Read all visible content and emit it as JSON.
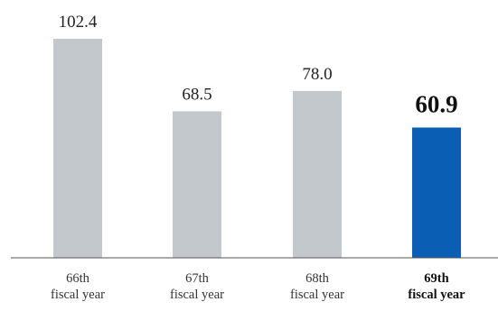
{
  "chart_data": {
    "type": "bar",
    "title": "",
    "xlabel": "",
    "ylabel": "",
    "categories": [
      [
        "66th",
        "fiscal year"
      ],
      [
        "67th",
        "fiscal year"
      ],
      [
        "68th",
        "fiscal year"
      ],
      [
        "69th",
        "fiscal year"
      ]
    ],
    "values": [
      102.4,
      68.5,
      78.0,
      60.9
    ],
    "value_labels": [
      "102.4",
      "68.5",
      "78.0",
      "60.9"
    ],
    "highlight_index": 3,
    "ylim": [
      0,
      110
    ],
    "grid": false,
    "legend": "none",
    "colors": {
      "bar": "#c3c8cd",
      "highlight": "#0a5fb4",
      "axis": "#555555"
    }
  }
}
